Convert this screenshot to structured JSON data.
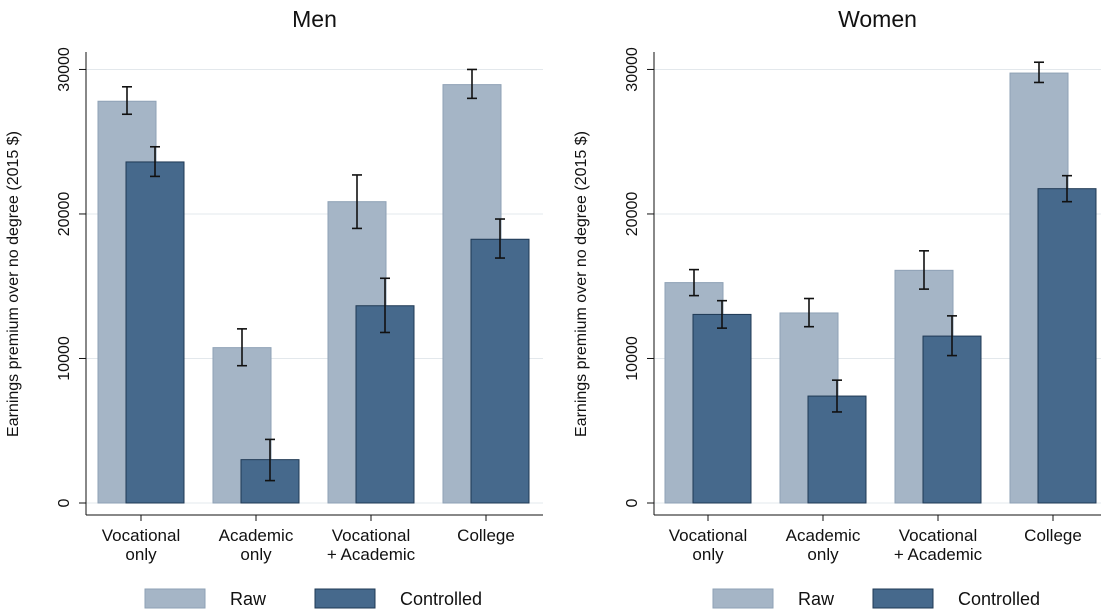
{
  "chart_data": [
    {
      "type": "bar",
      "title": "Men",
      "ylabel": "Earnings premium over no degree (2015 $)",
      "xlabel": "",
      "ylim": [
        0,
        31000
      ],
      "yticks": [
        0,
        10000,
        20000,
        30000
      ],
      "categories": [
        [
          "Vocational",
          "only"
        ],
        [
          "Academic",
          "only"
        ],
        [
          "Vocational",
          "+ Academic"
        ],
        [
          "College"
        ]
      ],
      "series": [
        {
          "name": "Raw",
          "color": "#a5b5c6",
          "values": [
            27800,
            10750,
            20850,
            28950
          ],
          "ci_low": [
            26900,
            9500,
            19000,
            28000
          ],
          "ci_high": [
            28800,
            12050,
            22700,
            30000
          ]
        },
        {
          "name": "Controlled",
          "color": "#46698c",
          "values": [
            23600,
            3000,
            13650,
            18250
          ],
          "ci_low": [
            22600,
            1550,
            11800,
            16950
          ],
          "ci_high": [
            24650,
            4400,
            15550,
            19650
          ]
        }
      ],
      "legend_position": "bottom",
      "grid": true
    },
    {
      "type": "bar",
      "title": "Women",
      "ylabel": "Earnings premium over no degree (2015 $)",
      "xlabel": "",
      "ylim": [
        0,
        31000
      ],
      "yticks": [
        0,
        10000,
        20000,
        30000
      ],
      "categories": [
        [
          "Vocational",
          "only"
        ],
        [
          "Academic",
          "only"
        ],
        [
          "Vocational",
          "+ Academic"
        ],
        [
          "College"
        ]
      ],
      "series": [
        {
          "name": "Raw",
          "color": "#a5b5c6",
          "values": [
            15250,
            13150,
            16100,
            29750
          ],
          "ci_low": [
            14350,
            12200,
            14800,
            29100
          ],
          "ci_high": [
            16150,
            14150,
            17450,
            30500
          ]
        },
        {
          "name": "Controlled",
          "color": "#46698c",
          "values": [
            13050,
            7400,
            11550,
            21750
          ],
          "ci_low": [
            12100,
            6300,
            10200,
            20850
          ],
          "ci_high": [
            14000,
            8500,
            12950,
            22650
          ]
        }
      ],
      "legend_position": "bottom",
      "grid": true
    }
  ]
}
